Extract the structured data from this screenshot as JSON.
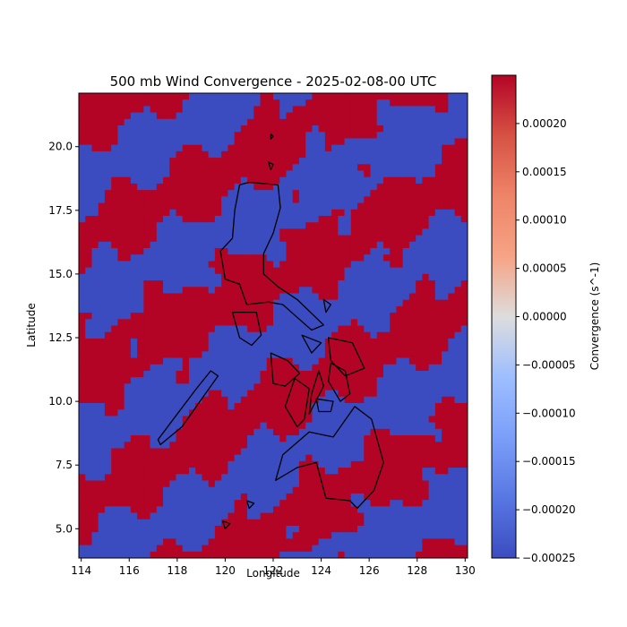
{
  "chart_data": {
    "type": "heatmap",
    "title": "500 mb Wind Convergence - 2025-02-08-00 UTC",
    "xlabel": "Longitude",
    "ylabel": "Latitude",
    "xlim": [
      113.9,
      130.1
    ],
    "ylim": [
      3.85,
      22.1
    ],
    "x_ticks": [
      114,
      116,
      118,
      120,
      122,
      124,
      126,
      128,
      130
    ],
    "x_tick_labels": [
      "114",
      "116",
      "118",
      "120",
      "122",
      "124",
      "126",
      "128",
      "130"
    ],
    "y_ticks": [
      5.0,
      7.5,
      10.0,
      12.5,
      15.0,
      17.5,
      20.0
    ],
    "y_tick_labels": [
      "5.0",
      "7.5",
      "10.0",
      "12.5",
      "15.0",
      "17.5",
      "20.0"
    ],
    "colorbar": {
      "label": "Convergence (s^-1)",
      "vmin": -0.00025,
      "vmax": 0.00025,
      "colormap": "coolwarm",
      "low_color": "#3b4cc0",
      "mid_color": "#dddddd",
      "high_color": "#b40426",
      "ticks": [
        -0.00025,
        -0.0002,
        -0.00015,
        -0.0001,
        -5e-05,
        0,
        5e-05,
        0.0001,
        0.00015,
        0.0002
      ],
      "tick_labels": [
        "−0.00025",
        "−0.00020",
        "−0.00015",
        "−0.00010",
        "−0.00005",
        "0.00000",
        "0.00005",
        "0.00010",
        "0.00015",
        "0.00020"
      ]
    },
    "grid": false,
    "field_note_values": {
      "saturated_positive": 0.00025,
      "saturated_negative": -0.00025
    },
    "coastline_color": "#000000"
  }
}
